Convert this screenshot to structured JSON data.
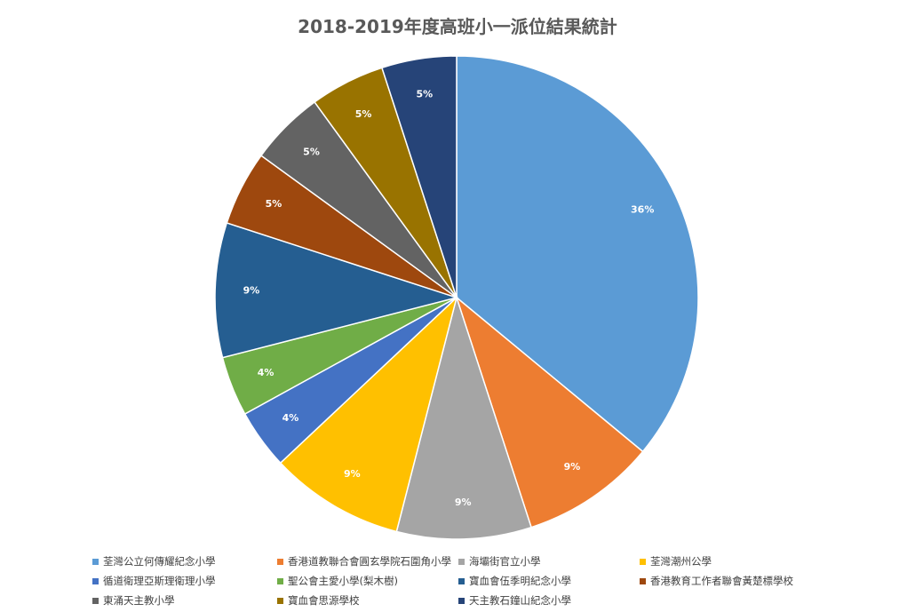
{
  "title": "2018-2019年度高班小一派位結果統計",
  "chart_data": {
    "type": "pie",
    "title": "2018-2019年度高班小一派位結果統計",
    "legend_position": "bottom",
    "slices": [
      {
        "name": "荃灣公立何傳耀紀念小學",
        "value": 36,
        "label": "36%",
        "color": "#5B9BD5"
      },
      {
        "name": "香港道教聯合會圓玄學院石圍角小學",
        "value": 9,
        "label": "9%",
        "color": "#ED7D31"
      },
      {
        "name": "海壩街官立小學",
        "value": 9,
        "label": "9%",
        "color": "#A5A5A5"
      },
      {
        "name": "荃灣潮州公學",
        "value": 9,
        "label": "9%",
        "color": "#FFC000"
      },
      {
        "name": "循道衛理亞斯理衛理小學",
        "value": 4,
        "label": "4%",
        "color": "#4472C4"
      },
      {
        "name": "聖公會主愛小學(梨木樹)",
        "value": 4,
        "label": "4%",
        "color": "#70AD47"
      },
      {
        "name": "寶血會伍季明紀念小學",
        "value": 9,
        "label": "9%",
        "color": "#255E91"
      },
      {
        "name": "香港教育工作者聯會黃楚標學校",
        "value": 5,
        "label": "5%",
        "color": "#9E480E"
      },
      {
        "name": "東涌天主教小學",
        "value": 5,
        "label": "5%",
        "color": "#636363"
      },
      {
        "name": "寶血會思源學校",
        "value": 5,
        "label": "5%",
        "color": "#997300"
      },
      {
        "name": "天主教石鐘山紀念小學",
        "value": 5,
        "label": "5%",
        "color": "#264478"
      }
    ]
  }
}
